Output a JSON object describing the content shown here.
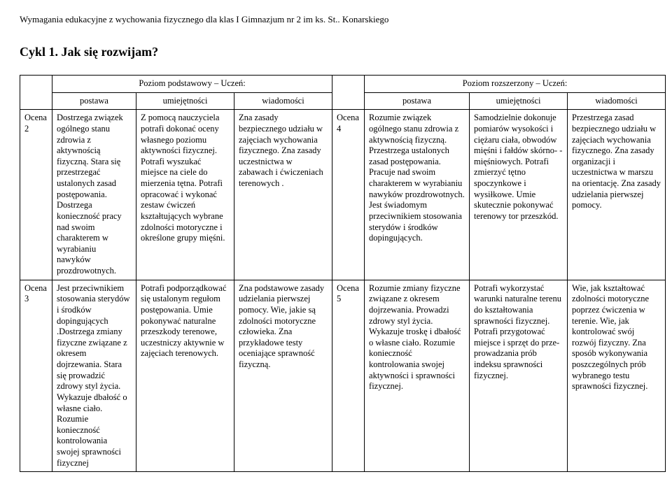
{
  "doc_title": "Wymagania edukacyjne z wychowania fizycznego dla klas I Gimnazjum nr 2 im ks. St.. Konarskiego",
  "cycle_title": "Cykl 1. Jak się rozwijam?",
  "headers": {
    "basic_level": "Poziom podstawowy – Uczeń:",
    "ext_level": "Poziom rozszerzony – Uczeń:",
    "postawa": "postawa",
    "umiejetnosci": "umiejętności",
    "wiadomosci": "wiadomości"
  },
  "rows": [
    {
      "grade_a": "Ocena 2",
      "postawa_a": "Dostrzega związek ogólnego stanu zdrowia z aktywnością fizyczną. Stara się przestrzegać ustalonych zasad postępowania. Dostrzega konieczność pracy nad swoim charakterem w wyrabianiu nawyków prozdrowotnych.",
      "umiej_a": "Z pomocą nauczyciela potrafi dokonać oceny własnego poziomu aktywności fizycznej. Potrafi wyszukać miejsce na ciele do mierzenia tętna. Potrafi opracować i wykonać zestaw ćwiczeń kształtujących wybrane zdolności motoryczne i określone grupy mięśni.",
      "wiad_a": "Zna zasady bezpiecznego udziału w zajęciach wychowania fizycznego. Zna zasady uczestnictwa w zabawach i ćwiczeniach terenowych .",
      "grade_b": "Ocena 4",
      "postawa_b": "Rozumie związek ogólnego stanu zdrowia z aktywnością fizyczną. Przestrzega ustalonych zasad postępowania. Pracuje nad swoim charakterem w wyrabianiu nawyków prozdrowotnych. Jest świadomym przeciwnikiem stosowania sterydów i środków dopingujących.",
      "umiej_b": "Samodzielnie dokonuje pomiarów wysokości i ciężaru ciała, obwodów mięśni i fałdów skórno- -mięśniowych. Potrafi zmierzyć tętno spoczynkowe i wysiłkowe. Umie skutecznie pokonywać terenowy tor przeszkód.",
      "wiad_b": "Przestrzega zasad bezpiecznego udziału w zajęciach wychowania fizycznego. Zna zasady organizacji i uczestnictwa w marszu na orientację. Zna zasady udzielania pierwszej pomocy."
    },
    {
      "grade_a": "Ocena 3",
      "postawa_a": "Jest przeciwnikiem stosowania sterydów i środków dopingujących .Dostrzega zmiany fizyczne związane z okresem dojrzewania. Stara się prowadzić zdrowy styl życia. Wykazuje dbałość o własne ciało. Rozumie konieczność kontrolowania swojej sprawności fizycznej",
      "umiej_a": "Potrafi podporządkować się ustalonym regułom postępowania. Umie pokonywać naturalne przeszkody terenowe, uczestniczy aktywnie w zajęciach terenowych.",
      "wiad_a": "Zna podstawowe zasady udzielania pierwszej pomocy. Wie, jakie są zdolności motoryczne człowieka. Zna przykładowe testy oceniające sprawność fizyczną.",
      "grade_b": "Ocena 5",
      "postawa_b": "Rozumie zmiany fizyczne związane z okresem dojrzewania. Prowadzi zdrowy styl życia. Wykazuje troskę i dbałość o własne ciało. Rozumie konieczność kontrolowania swojej aktywności i sprawności fizycznej.",
      "umiej_b": "Potrafi wykorzystać warunki naturalne terenu do kształtowania sprawności fizycznej. Potrafi przygotować miejsce i sprzęt do prze- prowadzania prób indeksu sprawności fizycznej.",
      "wiad_b": "Wie, jak kształtować zdolności motoryczne poprzez ćwiczenia w terenie. Wie, jak kontrolować swój rozwój fizyczny. Zna sposób wykonywania poszczególnych prób wybranego testu sprawności fizycznej."
    }
  ]
}
